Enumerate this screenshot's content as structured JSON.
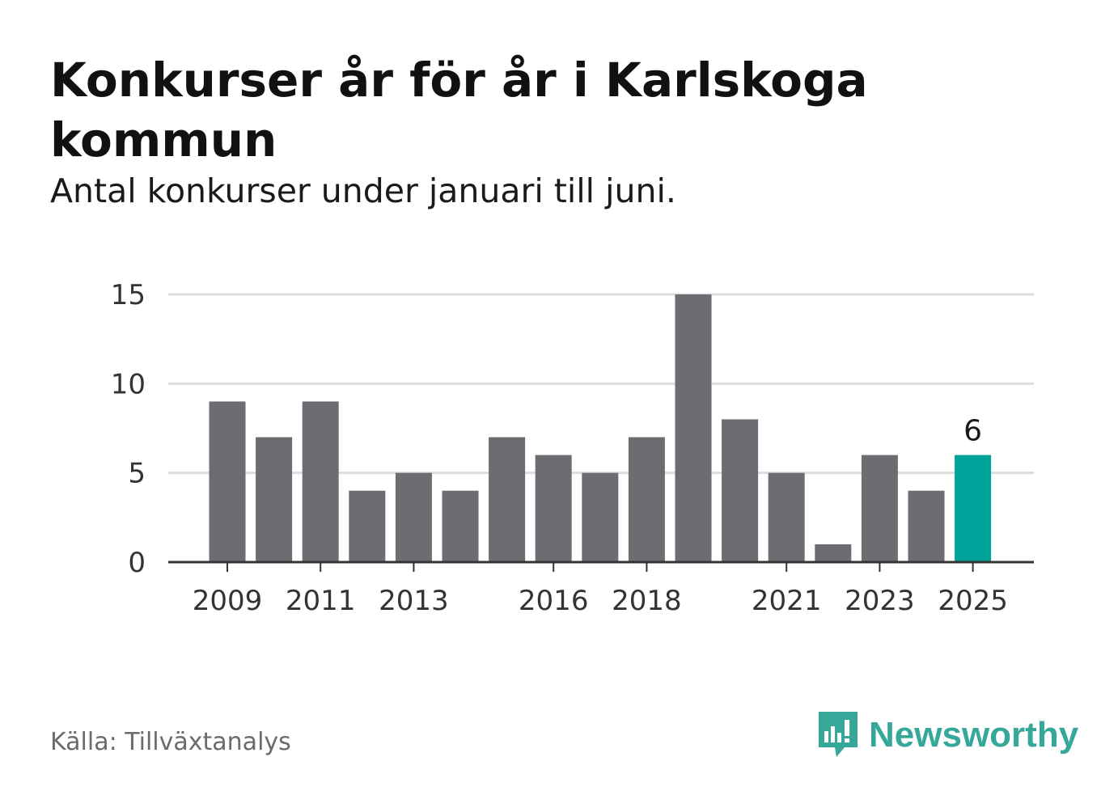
{
  "title": "Konkurser år för år i Karlskoga kommun",
  "subtitle": "Antal konkurser under januari till juni.",
  "source": "Källa: Tillväxtanalys",
  "brand": {
    "name": "Newsworthy",
    "icon": "newsworthy-logo-icon",
    "color": "#36a89a"
  },
  "chart_data": {
    "type": "bar",
    "categories": [
      "2009",
      "2010",
      "2011",
      "2012",
      "2013",
      "2014",
      "2015",
      "2016",
      "2017",
      "2018",
      "2019",
      "2020",
      "2021",
      "2022",
      "2023",
      "2024",
      "2025"
    ],
    "values": [
      9,
      7,
      9,
      4,
      5,
      4,
      7,
      6,
      5,
      7,
      15,
      8,
      5,
      1,
      6,
      4,
      6
    ],
    "x_tick_labels": [
      "2009",
      "2011",
      "2013",
      "2016",
      "2018",
      "2021",
      "2023",
      "2025"
    ],
    "y_ticks": [
      0,
      5,
      10,
      15
    ],
    "ylim": [
      0,
      15
    ],
    "grid": true,
    "highlight": {
      "category": "2025",
      "label": "6",
      "color": "#00a39a"
    },
    "bar_color": "#6d6c73"
  }
}
